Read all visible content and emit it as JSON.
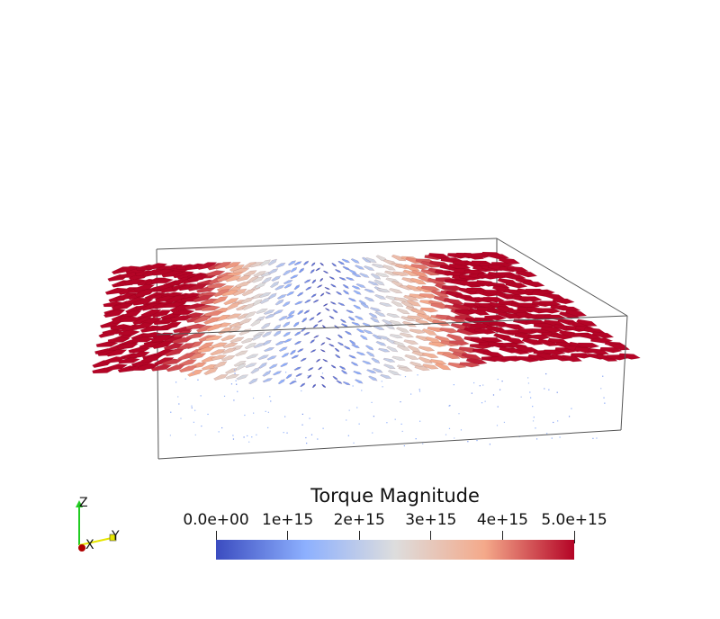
{
  "colorbar": {
    "title": "Torque Magnitude",
    "ticks": [
      "0.0e+00",
      "1e+15",
      "2e+15",
      "3e+15",
      "4e+15",
      "5.0e+15"
    ],
    "colormap": [
      "#3b4cc0",
      "#aac7fd",
      "#dddddd",
      "#f4a98a",
      "#b40426"
    ]
  },
  "orientation_axes": {
    "x_label": "X",
    "y_label": "Y",
    "z_label": "Z",
    "x_color": "#cc0000",
    "y_color": "#e6e600",
    "z_color": "#22cc22"
  },
  "scene": {
    "description_kind": "3D glyph arrow field in bounding box"
  }
}
